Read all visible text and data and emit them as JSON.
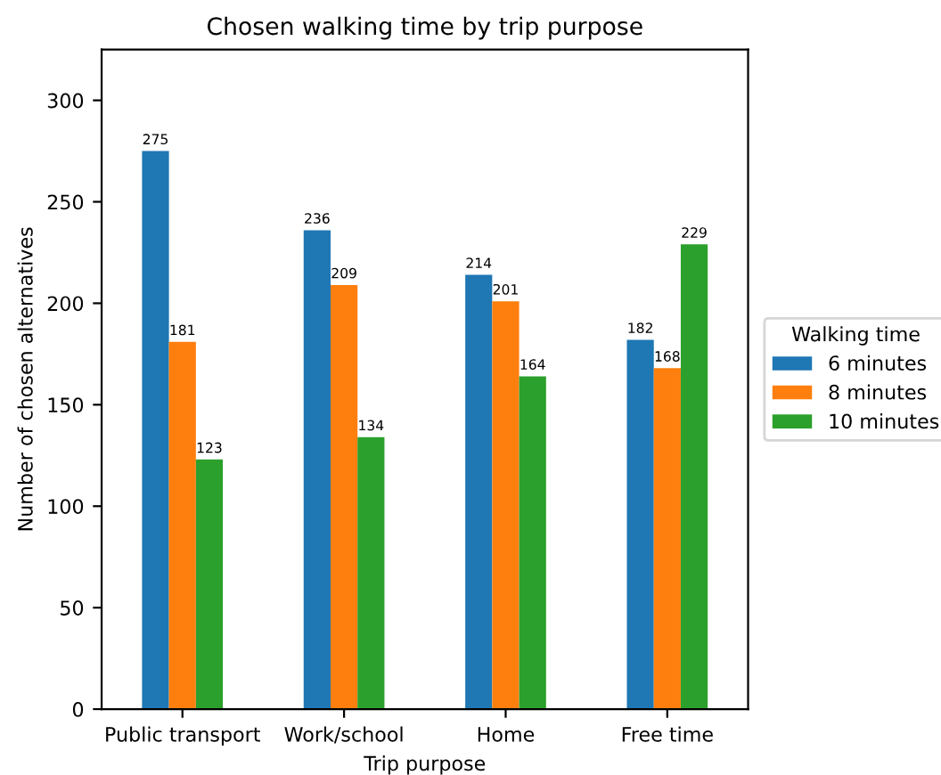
{
  "chart_data": {
    "type": "bar",
    "title": "Chosen walking time by trip purpose",
    "xlabel": "Trip purpose",
    "ylabel": "Number of chosen alternatives",
    "legend_title": "Walking time",
    "categories": [
      "Public transport",
      "Work/school",
      "Home",
      "Free time"
    ],
    "series": [
      {
        "name": "6 minutes",
        "color": "#1f77b4",
        "values": [
          275,
          236,
          214,
          182
        ]
      },
      {
        "name": "8 minutes",
        "color": "#ff7f0e",
        "values": [
          181,
          209,
          201,
          168
        ]
      },
      {
        "name": "10 minutes",
        "color": "#2ca02c",
        "values": [
          123,
          134,
          164,
          229
        ]
      }
    ],
    "ylim": [
      0,
      325
    ],
    "yticks": [
      0,
      50,
      100,
      150,
      200,
      250,
      300
    ],
    "data_labels": true,
    "legend": "right",
    "grid": false
  }
}
